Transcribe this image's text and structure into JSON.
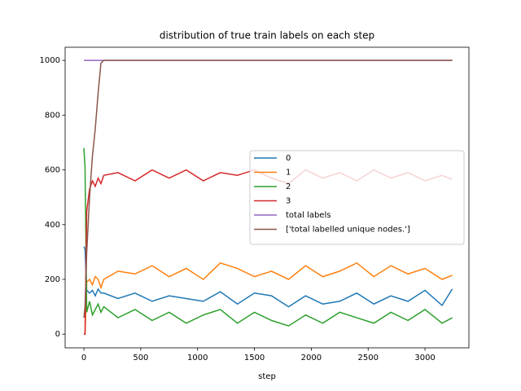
{
  "chart_data": {
    "type": "line",
    "title": "distribution of true train labels on each step",
    "xlabel": "step",
    "x": [
      0,
      10,
      25,
      50,
      75,
      100,
      125,
      150,
      175,
      300,
      450,
      600,
      750,
      900,
      1050,
      1200,
      1350,
      1500,
      1650,
      1800,
      1950,
      2100,
      2250,
      2400,
      2550,
      2700,
      2850,
      3000,
      3150,
      3240
    ],
    "series": [
      {
        "name": "0",
        "color": "#1f77b4",
        "values": [
          320,
          310,
          160,
          150,
          160,
          140,
          165,
          150,
          150,
          130,
          150,
          120,
          140,
          130,
          120,
          155,
          110,
          150,
          140,
          100,
          140,
          110,
          120,
          150,
          110,
          140,
          120,
          160,
          105,
          165
        ]
      },
      {
        "name": "1",
        "color": "#ff7f0e",
        "values": [
          0,
          0,
          190,
          200,
          180,
          210,
          200,
          170,
          200,
          230,
          220,
          250,
          210,
          240,
          200,
          260,
          240,
          210,
          230,
          200,
          250,
          210,
          230,
          260,
          210,
          250,
          220,
          240,
          200,
          215
        ]
      },
      {
        "name": "2",
        "color": "#2ca02c",
        "values": [
          680,
          610,
          80,
          120,
          70,
          90,
          110,
          80,
          100,
          60,
          90,
          50,
          80,
          40,
          70,
          90,
          40,
          80,
          50,
          30,
          70,
          40,
          80,
          60,
          40,
          80,
          50,
          90,
          40,
          60
        ]
      },
      {
        "name": "3",
        "color": "#d62728",
        "values": [
          0,
          0,
          450,
          530,
          560,
          540,
          570,
          550,
          580,
          590,
          560,
          600,
          570,
          600,
          560,
          590,
          580,
          600,
          570,
          550,
          600,
          570,
          590,
          560,
          600,
          570,
          590,
          560,
          580,
          565
        ]
      },
      {
        "name": "total labels",
        "color": "#9467bd",
        "values": [
          1000,
          1000,
          1000,
          1000,
          1000,
          1000,
          1000,
          1000,
          1000,
          1000,
          1000,
          1000,
          1000,
          1000,
          1000,
          1000,
          1000,
          1000,
          1000,
          1000,
          1000,
          1000,
          1000,
          1000,
          1000,
          1000,
          1000,
          1000,
          1000,
          1000
        ]
      },
      {
        "name": "['total labelled unique nodes.']",
        "color": "#8c564b",
        "values": [
          60,
          100,
          300,
          500,
          650,
          750,
          880,
          990,
          1000,
          1000,
          1000,
          1000,
          1000,
          1000,
          1000,
          1000,
          1000,
          1000,
          1000,
          1000,
          1000,
          1000,
          1000,
          1000,
          1000,
          1000,
          1000,
          1000,
          1000,
          1000
        ]
      }
    ],
    "xlim": [
      -165,
      3386
    ],
    "ylim": [
      -50,
      1048
    ],
    "xticks": [
      0,
      500,
      1000,
      1500,
      2000,
      2500,
      3000
    ],
    "yticks": [
      0,
      200,
      400,
      600,
      800,
      1000
    ],
    "legend": "center right"
  }
}
